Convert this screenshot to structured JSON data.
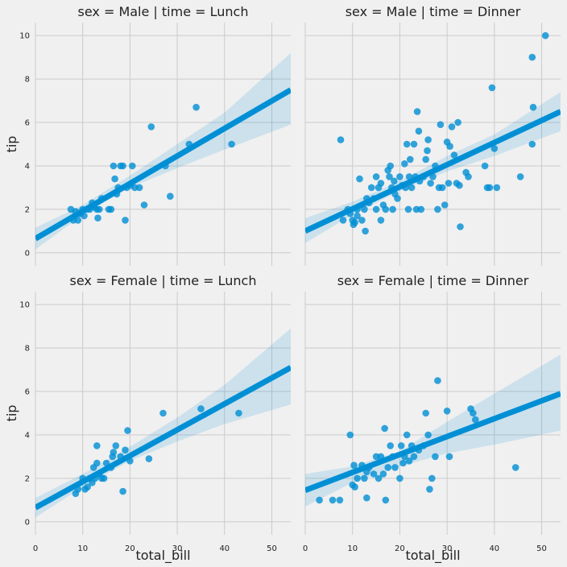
{
  "chart_data": {
    "type": "scatter",
    "facet_layout": "2x2",
    "xlabel": "total_bill",
    "ylabel": "tip",
    "xlim": [
      0,
      54
    ],
    "ylim": [
      -0.6,
      10.6
    ],
    "xticks": [
      0,
      10,
      20,
      30,
      40,
      50
    ],
    "yticks": [
      0,
      2,
      4,
      6,
      8,
      10
    ],
    "grid": true,
    "color": "#008fd5",
    "panels": [
      {
        "title": "sex = Male | time = Lunch",
        "row": 0,
        "col": 0,
        "points": [
          [
            7.5,
            2.0
          ],
          [
            8.0,
            1.5
          ],
          [
            8.5,
            1.9
          ],
          [
            9.0,
            1.5
          ],
          [
            9.5,
            1.8
          ],
          [
            10.0,
            2.0
          ],
          [
            10.3,
            1.7
          ],
          [
            11.0,
            2.0
          ],
          [
            11.5,
            2.0
          ],
          [
            12.0,
            2.3
          ],
          [
            12.4,
            2.1
          ],
          [
            13.0,
            2.0
          ],
          [
            13.2,
            1.6
          ],
          [
            13.5,
            2.0
          ],
          [
            14.0,
            2.5
          ],
          [
            15.5,
            2.0
          ],
          [
            16.0,
            2.0
          ],
          [
            16.5,
            4.0
          ],
          [
            16.8,
            3.4
          ],
          [
            17.2,
            2.7
          ],
          [
            17.5,
            3.0
          ],
          [
            18.0,
            4.0
          ],
          [
            18.5,
            4.0
          ],
          [
            19.0,
            1.5
          ],
          [
            19.3,
            3.0
          ],
          [
            20.0,
            3.1
          ],
          [
            20.5,
            4.0
          ],
          [
            21.0,
            3.0
          ],
          [
            22.0,
            3.0
          ],
          [
            23.0,
            2.2
          ],
          [
            24.5,
            5.8
          ],
          [
            27.5,
            4.0
          ],
          [
            28.5,
            2.6
          ],
          [
            32.5,
            5.0
          ],
          [
            34.0,
            6.7
          ],
          [
            41.5,
            5.0
          ]
        ],
        "fit": {
          "x": [
            0,
            54
          ],
          "y": [
            0.65,
            7.5
          ]
        },
        "ci": {
          "x": [
            0,
            10,
            20,
            30,
            40,
            54
          ],
          "lower": [
            0.15,
            1.75,
            3.0,
            3.9,
            4.75,
            5.9
          ],
          "upper": [
            1.15,
            2.2,
            3.55,
            5.0,
            6.45,
            9.2
          ]
        }
      },
      {
        "title": "sex = Male | time = Dinner",
        "row": 0,
        "col": 1,
        "points": [
          [
            7.5,
            5.2
          ],
          [
            8.0,
            1.5
          ],
          [
            9.0,
            2.0
          ],
          [
            9.5,
            1.8
          ],
          [
            10.0,
            1.5
          ],
          [
            10.2,
            1.3
          ],
          [
            10.5,
            1.4
          ],
          [
            11.0,
            1.7
          ],
          [
            11.0,
            2.0
          ],
          [
            11.5,
            3.4
          ],
          [
            12.0,
            1.5
          ],
          [
            12.5,
            2.0
          ],
          [
            12.7,
            1.0
          ],
          [
            13.0,
            2.5
          ],
          [
            13.5,
            2.3
          ],
          [
            14.0,
            3.0
          ],
          [
            14.5,
            2.5
          ],
          [
            15.0,
            3.5
          ],
          [
            15.0,
            2.0
          ],
          [
            15.5,
            3.0
          ],
          [
            16.0,
            1.5
          ],
          [
            16.0,
            3.2
          ],
          [
            16.5,
            2.2
          ],
          [
            17.0,
            2.0
          ],
          [
            17.5,
            3.8
          ],
          [
            17.8,
            3.5
          ],
          [
            18.0,
            4.0
          ],
          [
            18.3,
            3.0
          ],
          [
            18.5,
            2.0
          ],
          [
            18.8,
            3.3
          ],
          [
            19.0,
            2.7
          ],
          [
            19.5,
            2.5
          ],
          [
            20.0,
            3.5
          ],
          [
            20.5,
            3.1
          ],
          [
            21.0,
            4.1
          ],
          [
            21.2,
            3.0
          ],
          [
            21.5,
            5.0
          ],
          [
            21.8,
            2.0
          ],
          [
            22.0,
            3.5
          ],
          [
            22.2,
            4.3
          ],
          [
            22.5,
            3.0
          ],
          [
            23.0,
            5.0
          ],
          [
            23.3,
            3.5
          ],
          [
            23.5,
            2.0
          ],
          [
            23.7,
            6.5
          ],
          [
            24.0,
            5.6
          ],
          [
            24.2,
            3.3
          ],
          [
            24.5,
            2.0
          ],
          [
            25.0,
            3.5
          ],
          [
            25.5,
            4.3
          ],
          [
            25.8,
            4.7
          ],
          [
            26.0,
            5.2
          ],
          [
            26.5,
            3.2
          ],
          [
            27.0,
            3.5
          ],
          [
            27.5,
            4.0
          ],
          [
            28.0,
            2.0
          ],
          [
            28.3,
            3.0
          ],
          [
            28.6,
            5.9
          ],
          [
            29.0,
            3.0
          ],
          [
            29.5,
            2.2
          ],
          [
            30.0,
            5.1
          ],
          [
            30.3,
            3.2
          ],
          [
            30.6,
            4.9
          ],
          [
            31.0,
            5.8
          ],
          [
            31.5,
            4.5
          ],
          [
            32.0,
            3.2
          ],
          [
            32.3,
            6.0
          ],
          [
            32.6,
            3.1
          ],
          [
            32.8,
            1.2
          ],
          [
            34.0,
            3.7
          ],
          [
            34.5,
            3.5
          ],
          [
            38.0,
            4.0
          ],
          [
            38.5,
            3.0
          ],
          [
            39.0,
            3.0
          ],
          [
            39.5,
            7.6
          ],
          [
            40.0,
            4.8
          ],
          [
            40.5,
            3.0
          ],
          [
            45.5,
            3.5
          ],
          [
            48.0,
            9.0
          ],
          [
            48.2,
            6.7
          ],
          [
            48.0,
            5.0
          ],
          [
            50.8,
            10.0
          ]
        ],
        "fit": {
          "x": [
            0,
            54
          ],
          "y": [
            1.0,
            6.5
          ]
        },
        "ci": {
          "x": [
            0,
            10,
            20,
            30,
            40,
            54
          ],
          "lower": [
            0.45,
            1.75,
            2.85,
            3.75,
            4.45,
            5.6
          ],
          "upper": [
            1.6,
            2.35,
            3.3,
            4.45,
            5.45,
            7.4
          ]
        }
      },
      {
        "title": "sex = Female | time = Lunch",
        "row": 1,
        "col": 0,
        "points": [
          [
            8.5,
            1.3
          ],
          [
            9.0,
            1.5
          ],
          [
            10.0,
            2.0
          ],
          [
            10.5,
            1.5
          ],
          [
            11.0,
            1.6
          ],
          [
            11.5,
            2.0
          ],
          [
            12.0,
            1.8
          ],
          [
            12.3,
            2.5
          ],
          [
            12.6,
            2.0
          ],
          [
            13.0,
            2.7
          ],
          [
            13.0,
            3.5
          ],
          [
            13.5,
            2.2
          ],
          [
            14.0,
            2.0
          ],
          [
            14.5,
            2.0
          ],
          [
            15.0,
            2.7
          ],
          [
            16.0,
            2.5
          ],
          [
            16.3,
            3.0
          ],
          [
            16.5,
            3.2
          ],
          [
            17.0,
            3.5
          ],
          [
            18.0,
            3.0
          ],
          [
            18.5,
            1.4
          ],
          [
            19.0,
            3.3
          ],
          [
            19.5,
            4.2
          ],
          [
            20.0,
            2.8
          ],
          [
            24.0,
            2.9
          ],
          [
            27.0,
            5.0
          ],
          [
            35.0,
            5.2
          ],
          [
            43.0,
            5.0
          ]
        ],
        "fit": {
          "x": [
            0,
            54
          ],
          "y": [
            0.65,
            7.1
          ]
        },
        "ci": {
          "x": [
            0,
            10,
            20,
            30,
            40,
            54
          ],
          "lower": [
            0.2,
            1.6,
            2.8,
            3.7,
            4.5,
            5.4
          ],
          "upper": [
            1.1,
            2.2,
            3.45,
            4.8,
            6.3,
            8.9
          ]
        }
      },
      {
        "title": "sex = Female | time = Dinner",
        "row": 1,
        "col": 1,
        "points": [
          [
            3.0,
            1.0
          ],
          [
            5.8,
            1.0
          ],
          [
            7.3,
            1.0
          ],
          [
            9.5,
            4.0
          ],
          [
            10.0,
            1.7
          ],
          [
            10.5,
            1.6
          ],
          [
            10.3,
            2.6
          ],
          [
            11.0,
            2.0
          ],
          [
            12.0,
            2.6
          ],
          [
            12.5,
            2.0
          ],
          [
            13.0,
            2.3
          ],
          [
            13.0,
            1.1
          ],
          [
            13.5,
            2.5
          ],
          [
            14.5,
            2.2
          ],
          [
            15.0,
            3.0
          ],
          [
            15.5,
            2.0
          ],
          [
            16.0,
            3.0
          ],
          [
            16.5,
            2.2
          ],
          [
            16.8,
            4.3
          ],
          [
            17.0,
            1.0
          ],
          [
            17.5,
            2.5
          ],
          [
            18.0,
            3.5
          ],
          [
            18.5,
            3.0
          ],
          [
            19.0,
            2.5
          ],
          [
            20.0,
            2.0
          ],
          [
            20.3,
            3.5
          ],
          [
            20.7,
            2.7
          ],
          [
            21.0,
            3.0
          ],
          [
            21.5,
            4.0
          ],
          [
            22.0,
            2.8
          ],
          [
            22.5,
            3.5
          ],
          [
            23.0,
            3.0
          ],
          [
            24.0,
            3.3
          ],
          [
            25.0,
            3.5
          ],
          [
            25.5,
            5.0
          ],
          [
            26.0,
            4.0
          ],
          [
            26.3,
            1.5
          ],
          [
            26.8,
            2.0
          ],
          [
            27.5,
            3.0
          ],
          [
            28.0,
            6.5
          ],
          [
            30.0,
            5.1
          ],
          [
            30.5,
            3.0
          ],
          [
            35.0,
            5.2
          ],
          [
            35.5,
            5.0
          ],
          [
            36.0,
            4.7
          ],
          [
            44.5,
            2.5
          ]
        ],
        "fit": {
          "x": [
            0,
            54
          ],
          "y": [
            1.45,
            5.9
          ]
        },
        "ci": {
          "x": [
            0,
            10,
            20,
            30,
            40,
            54
          ],
          "lower": [
            0.7,
            1.8,
            2.55,
            3.15,
            3.55,
            4.2
          ],
          "upper": [
            2.2,
            2.55,
            3.25,
            4.6,
            5.9,
            7.7
          ]
        }
      }
    ]
  }
}
